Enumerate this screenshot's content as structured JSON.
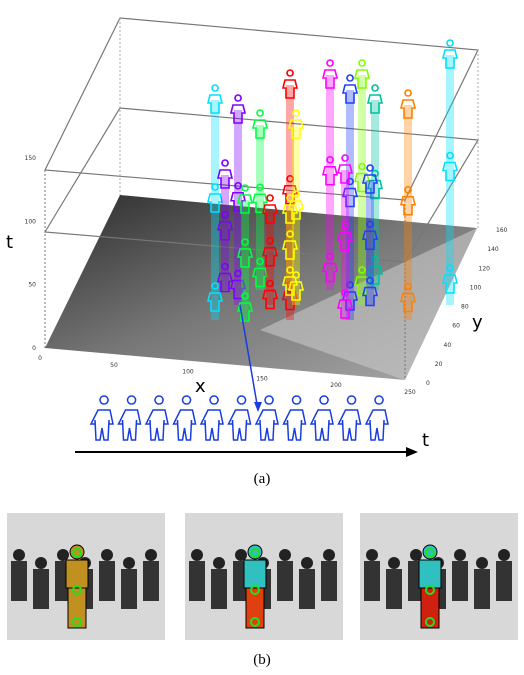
{
  "figure": {
    "panel_a": {
      "axis_labels": {
        "t": "t",
        "x": "x",
        "y": "y"
      },
      "t_ticks": [
        "0",
        "50",
        "100",
        "150"
      ],
      "x_ticks": [
        "0",
        "50",
        "100",
        "150",
        "200",
        "250"
      ],
      "y_ticks": [
        "0",
        "20",
        "40",
        "60",
        "80",
        "100",
        "120",
        "140",
        "160"
      ],
      "time_arrow_label": "t",
      "caption": "(a)"
    },
    "panel_b": {
      "caption": "(b)"
    }
  }
}
